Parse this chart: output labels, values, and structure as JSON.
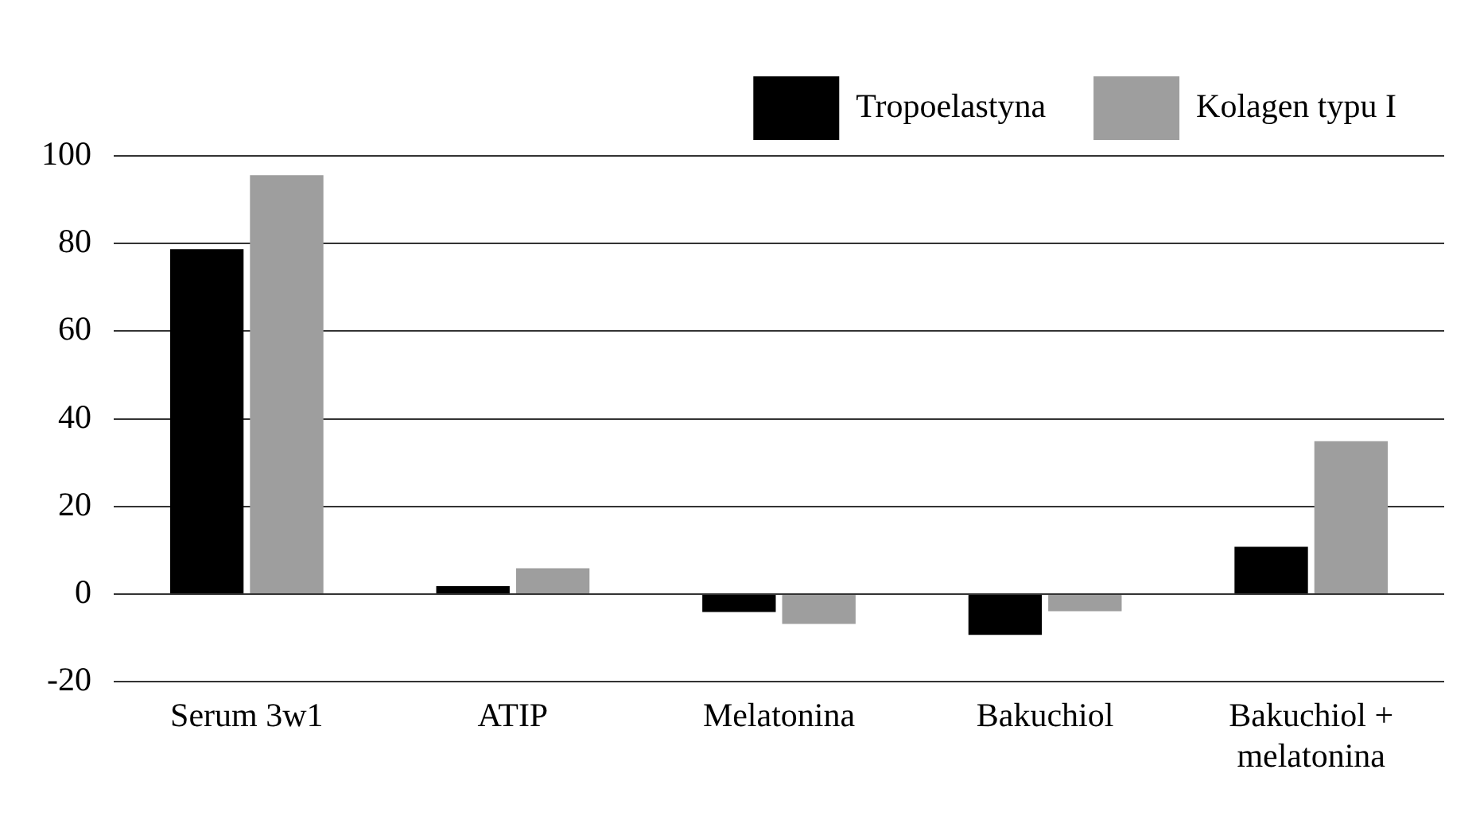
{
  "chart_data": {
    "type": "bar",
    "categories": [
      "Serum 3w1",
      "ATIP",
      "Melatonina",
      "Bakuchiol",
      "Bakuchiol + melatonina"
    ],
    "series": [
      {
        "name": "Tropoelastyna",
        "color": "#000000",
        "values": [
          78.7,
          1.8,
          -4.1,
          -9.3,
          10.8
        ]
      },
      {
        "name": "Kolagen typu I",
        "color": "#9e9e9e",
        "values": [
          95.6,
          5.9,
          -6.8,
          -3.9,
          34.9
        ]
      }
    ],
    "ylim": [
      -20,
      100
    ],
    "yticks": [
      -20,
      0,
      20,
      40,
      60,
      80,
      100
    ],
    "grid": "y",
    "legend": "top right"
  }
}
